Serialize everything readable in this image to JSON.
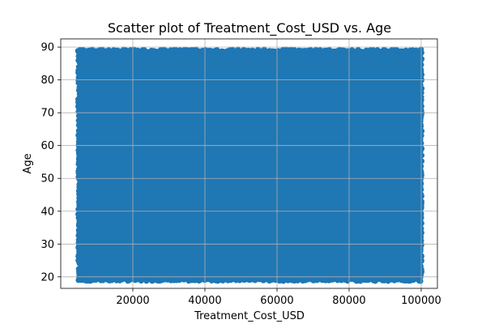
{
  "chart_data": {
    "type": "scatter",
    "title": "Scatter plot of Treatment_Cost_USD vs. Age",
    "xlabel": "Treatment_Cost_USD",
    "ylabel": "Age",
    "xlim": [
      0,
      104500
    ],
    "ylim": [
      16.5,
      92.5
    ],
    "xticks": [
      20000,
      40000,
      60000,
      80000,
      100000
    ],
    "xtick_labels": [
      "20000",
      "40000",
      "60000",
      "80000",
      "100000"
    ],
    "yticks": [
      20,
      30,
      40,
      50,
      60,
      70,
      80,
      90
    ],
    "ytick_labels": [
      "20",
      "30",
      "40",
      "50",
      "60",
      "70",
      "80",
      "90"
    ],
    "grid": true,
    "point_color": "#1f77b4",
    "point_cloud": {
      "x_range": [
        5000,
        100000
      ],
      "y_range": [
        19,
        89
      ],
      "density": "dense, uniform"
    }
  }
}
